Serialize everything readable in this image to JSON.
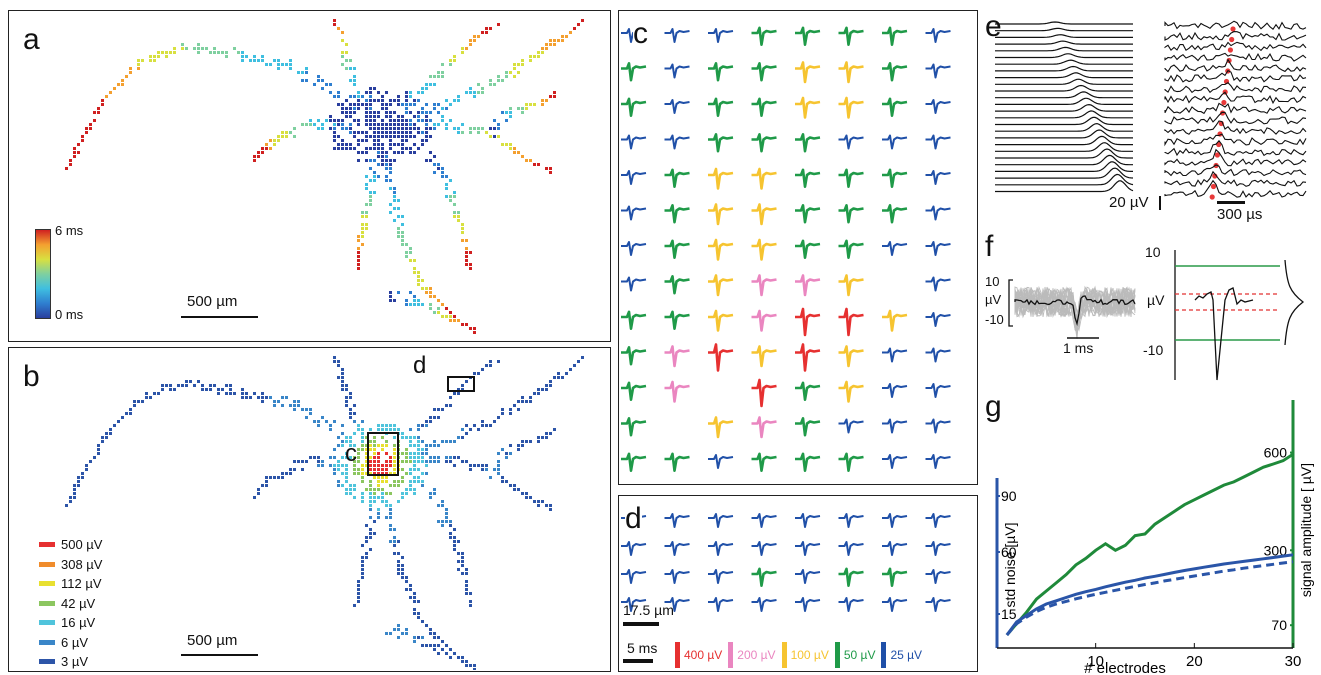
{
  "figure": {
    "panel_labels": {
      "a": "a",
      "b": "b",
      "c": "c",
      "d": "d",
      "e": "e",
      "f": "f",
      "g": "g"
    },
    "panel_a": {
      "colorbar_max": "6 ms",
      "colorbar_min": "0 ms",
      "scalebar": "500 µm",
      "colors": [
        "#2a3f9e",
        "#2f7fd0",
        "#3fbfe0",
        "#7fd0a0",
        "#d8e040",
        "#f4a030",
        "#d02020"
      ]
    },
    "panel_b": {
      "scalebar": "500 µm",
      "box_c_label": "c",
      "box_d_label": "d",
      "legend": [
        {
          "label": "500 µV",
          "color": "#e63030"
        },
        {
          "label": "308 µV",
          "color": "#f08c2c"
        },
        {
          "label": "112 µV",
          "color": "#e8e030"
        },
        {
          "label": "42 µV",
          "color": "#8cc660"
        },
        {
          "label": "16 µV",
          "color": "#50c4dc"
        },
        {
          "label": "6 µV",
          "color": "#3a86c8"
        },
        {
          "label": "3 µV",
          "color": "#2d55a8"
        }
      ]
    },
    "panel_c": {
      "rows": [
        "BBBGGGGB",
        "GBGGYYGB",
        "GBGGYYGB",
        "BBGGGBBB",
        "BGYYGGGB",
        "BGYYGGGB",
        "BGYYGGBB",
        "BGYPPY-B",
        "GGYPRRYB",
        "GPRYRYBB",
        "GP-RGYBB",
        "G-YPGBBB",
        "GGBGGGBB"
      ]
    },
    "panel_d": {
      "rows": [
        "BBBBBBBB",
        "BBBBBBBB",
        "BBBGBGGB",
        "BBBBBBBB"
      ],
      "scalebar_space": "17.5 µm",
      "scalebar_time": "5 ms",
      "amp_legend": [
        {
          "label": "400 µV",
          "color": "#e63030"
        },
        {
          "label": "200 µV",
          "color": "#ea86c0"
        },
        {
          "label": "100 µV",
          "color": "#f6c430"
        },
        {
          "label": "50 µV",
          "color": "#1f9a48"
        },
        {
          "label": "25 µV",
          "color": "#2050a8"
        }
      ]
    },
    "panel_e": {
      "amp_scale": "20 µV",
      "time_scale": "300 µs"
    },
    "panel_f": {
      "ytick_top": "10",
      "ytick_unit": "µV",
      "ytick_bottom": "-10",
      "time_scale": "1 ms"
    }
  },
  "chart_data": {
    "type": "line",
    "xlabel": "# electrodes",
    "y_left_label": "std noise [µV]",
    "y_right_label": "signal amplitude [ µV]",
    "x_ticks": [
      "10",
      "20",
      "30"
    ],
    "y_left_ticks": [
      "15",
      "60",
      "90"
    ],
    "y_right_ticks": [
      "70",
      "300",
      "600"
    ],
    "xlim": [
      0,
      30
    ],
    "y_right_lim": [
      0,
      700
    ],
    "x": [
      1,
      2,
      3,
      4,
      5,
      6,
      7,
      8,
      9,
      10,
      11,
      12,
      13,
      14,
      15,
      16,
      17,
      18,
      19,
      20,
      21,
      22,
      23,
      24,
      25,
      26,
      27,
      28,
      29,
      30
    ],
    "series": [
      {
        "color": "#1f8a3a",
        "values": [
          40,
          75,
          110,
          150,
          175,
          200,
          225,
          255,
          275,
          300,
          320,
          300,
          315,
          345,
          350,
          380,
          400,
          420,
          440,
          455,
          470,
          485,
          500,
          510,
          525,
          540,
          555,
          565,
          575,
          595
        ]
      },
      {
        "color": "#2a55a8",
        "values": [
          40,
          80,
          100,
          120,
          135,
          145,
          155,
          165,
          173,
          180,
          188,
          195,
          202,
          208,
          215,
          220,
          226,
          232,
          238,
          243,
          248,
          253,
          258,
          262,
          266,
          270,
          274,
          278,
          282,
          286
        ]
      },
      {
        "color": "#2a55a8",
        "dash": true,
        "values": [
          40,
          75,
          95,
          112,
          125,
          135,
          143,
          151,
          158,
          165,
          171,
          177,
          183,
          189,
          195,
          200,
          206,
          211,
          216,
          221,
          226,
          231,
          236,
          240,
          245,
          249,
          253,
          257,
          261,
          265
        ]
      }
    ]
  }
}
